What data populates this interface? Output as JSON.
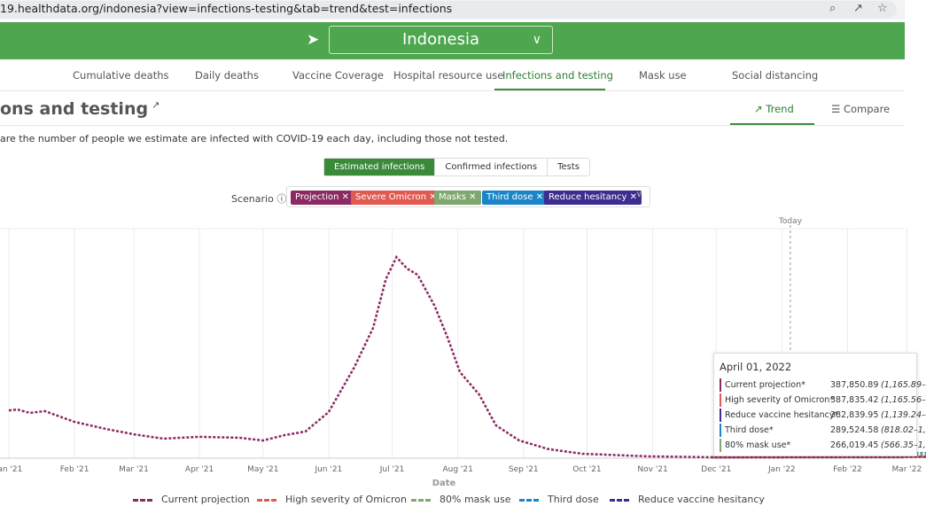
{
  "browser": {
    "url": "19.healthdata.org/indonesia?view=infections-testing&tab=trend&test=infections",
    "icons": [
      "zoom-icon",
      "share-icon",
      "star-icon"
    ]
  },
  "header": {
    "location": "Indonesia"
  },
  "nav": {
    "items": [
      "Cumulative deaths",
      "Daily deaths",
      "Vaccine Coverage",
      "Hospital resource use",
      "Infections and testing",
      "Mask use",
      "Social distancing"
    ],
    "active": "Infections and testing"
  },
  "page": {
    "title": "ons and testing",
    "description": "are the number of people we estimate are infected with COVID-19 each day, including those not tested.",
    "view_tabs": [
      "Trend",
      "Compare"
    ]
  },
  "measures": [
    "Estimated infections",
    "Confirmed infections",
    "Tests"
  ],
  "scenario": {
    "label": "Scenario",
    "tags": [
      {
        "label": "Projection",
        "color": "#8b2a62"
      },
      {
        "label": "Severe Omicron",
        "color": "#e05a52"
      },
      {
        "label": "Masks",
        "color": "#7fa870"
      },
      {
        "label": "Third dose",
        "color": "#1a86c8"
      },
      {
        "label": "Reduce hesitancy",
        "color": "#3d2d8f"
      }
    ]
  },
  "tooltip": {
    "date": "April 01, 2022",
    "rows": [
      {
        "name": "Current projection*",
        "value": "387,850.89",
        "ci": "(1,165.89–",
        "color": "#8b2a62"
      },
      {
        "name": "High severity of Omicron*",
        "value": "387,835.42",
        "ci": "(1,165.56–",
        "color": "#e05a52"
      },
      {
        "name": "Reduce vaccine hesitancy*",
        "value": "382,839.95",
        "ci": "(1,139.24–",
        "color": "#3d2d8f"
      },
      {
        "name": "Third dose*",
        "value": "289,524.58",
        "ci": "(818.02–1,",
        "color": "#1a86c8"
      },
      {
        "name": "80% mask use*",
        "value": "266,019.45",
        "ci": "(566.35–1,",
        "color": "#7fa870"
      }
    ]
  },
  "chart_data": {
    "type": "line",
    "xlabel": "Date",
    "ylabel": "",
    "today_label": "Today",
    "x_ticks": [
      "Jan '21",
      "Feb '21",
      "Mar '21",
      "Apr '21",
      "May '21",
      "Jun '21",
      "Jul '21",
      "Aug '21",
      "Sep '21",
      "Oct '21",
      "Nov '21",
      "Dec '21",
      "Jan '22",
      "Feb '22",
      "Mar '22"
    ],
    "x_unit": "days since Jan 1 2021",
    "y_unit": "relative (% of axis max; y-axis labels not shown)",
    "ylim": [
      0,
      100
    ],
    "today_day": 369,
    "series": [
      {
        "name": "Current projection",
        "color": "#8b2a62",
        "points": [
          [
            0,
            20.8
          ],
          [
            4,
            21.2
          ],
          [
            10,
            19.7
          ],
          [
            17,
            20.5
          ],
          [
            31,
            15.8
          ],
          [
            46,
            12.7
          ],
          [
            59,
            10.4
          ],
          [
            73,
            8.5
          ],
          [
            90,
            9.3
          ],
          [
            109,
            8.9
          ],
          [
            120,
            7.7
          ],
          [
            130,
            10.0
          ],
          [
            140,
            11.6
          ],
          [
            151,
            20.1
          ],
          [
            163,
            39.4
          ],
          [
            172,
            56.8
          ],
          [
            178,
            78.0
          ],
          [
            183,
            87.6
          ],
          [
            188,
            82.6
          ],
          [
            193,
            79.9
          ],
          [
            201,
            66.4
          ],
          [
            207,
            52.9
          ],
          [
            213,
            37.5
          ],
          [
            222,
            27.8
          ],
          [
            230,
            14.3
          ],
          [
            241,
            7.7
          ],
          [
            255,
            3.9
          ],
          [
            271,
            1.9
          ],
          [
            302,
            0.8
          ],
          [
            332,
            0.4
          ],
          [
            360,
            0.4
          ],
          [
            420,
            0.5
          ],
          [
            455,
            0.6
          ]
        ]
      },
      {
        "name": "High severity of Omicron",
        "color": "#e05a52",
        "points": [
          [
            332,
            0.4
          ],
          [
            360,
            0.5
          ],
          [
            420,
            0.8
          ],
          [
            455,
            0.9
          ]
        ]
      },
      {
        "name": "80% mask use",
        "color": "#7fa870",
        "points": [
          [
            332,
            0.4
          ],
          [
            360,
            0.6
          ],
          [
            420,
            1.6
          ],
          [
            455,
            2.2
          ]
        ]
      },
      {
        "name": "Third dose",
        "color": "#1a86c8",
        "points": [
          [
            332,
            0.4
          ],
          [
            360,
            0.7
          ],
          [
            420,
            2.0
          ],
          [
            455,
            2.6
          ]
        ]
      },
      {
        "name": "Reduce vaccine hesitancy",
        "color": "#3d2d8f",
        "points": [
          [
            332,
            0.4
          ],
          [
            360,
            0.5
          ],
          [
            420,
            0.7
          ],
          [
            455,
            0.8
          ]
        ]
      }
    ],
    "legend": "bottom",
    "grid": true
  }
}
